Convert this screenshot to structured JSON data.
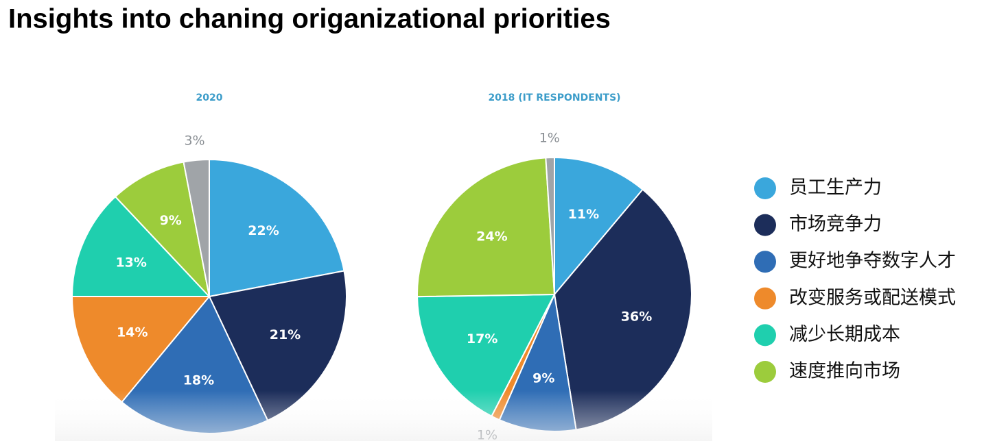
{
  "title": "Insights into chaning origanizational priorities",
  "legend": [
    {
      "name": "员工生产力",
      "color": "#3aa7dc"
    },
    {
      "name": "市场竞争力",
      "color": "#1c2d5a"
    },
    {
      "name": "更好地争夺数字人才",
      "color": "#2f6db5"
    },
    {
      "name": "改变服务或配送模式",
      "color": "#ee8a2b"
    },
    {
      "name": "减少长期成本",
      "color": "#1fcfae"
    },
    {
      "name": "速度推向市场",
      "color": "#9ccc3c"
    }
  ],
  "chart_data": [
    {
      "type": "pie",
      "title": "2020",
      "values": [
        22,
        21,
        18,
        14,
        13,
        9,
        3
      ],
      "value_labels": [
        "22%",
        "21%",
        "18%",
        "14%",
        "13%",
        "9%",
        "3%"
      ],
      "colors": [
        "#3aa7dc",
        "#1c2d5a",
        "#2f6db5",
        "#ee8a2b",
        "#1fcfae",
        "#9ccc3c",
        "#a0a4a8"
      ]
    },
    {
      "type": "pie",
      "title": "2018 (IT RESPONDENTS)",
      "values": [
        11,
        36,
        9,
        1,
        17,
        24,
        1
      ],
      "value_labels": [
        "11%",
        "36%",
        "9%",
        "1%",
        "17%",
        "24%",
        "1%"
      ],
      "colors": [
        "#3aa7dc",
        "#1c2d5a",
        "#2f6db5",
        "#ee8a2b",
        "#1fcfae",
        "#9ccc3c",
        "#a0a4a8"
      ]
    }
  ]
}
